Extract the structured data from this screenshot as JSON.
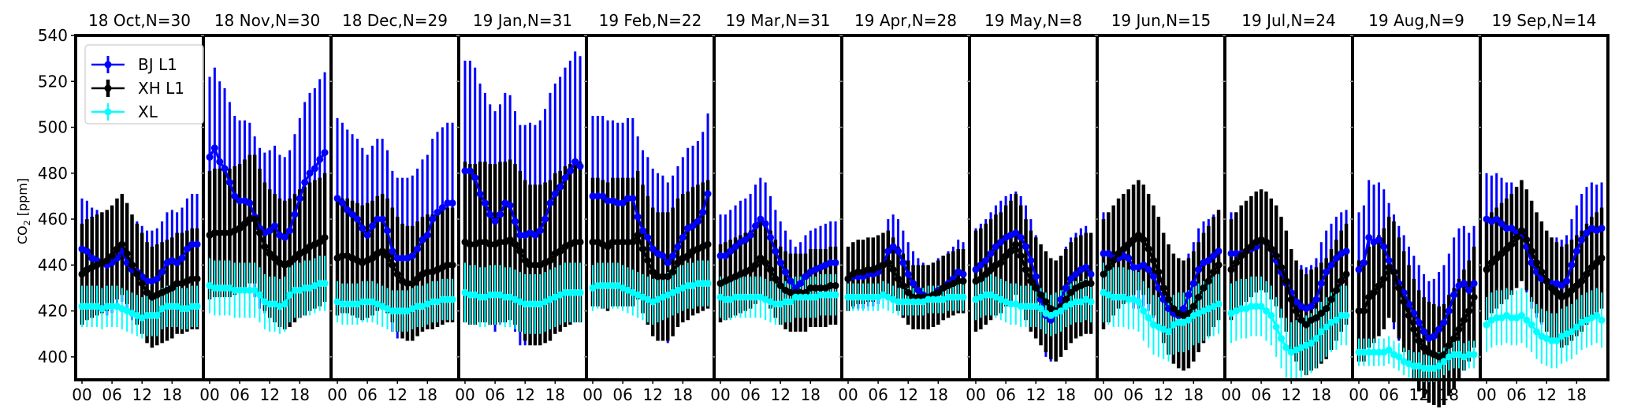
{
  "chart_data": {
    "type": "line",
    "subtype": "errorbar-panels",
    "ylabel": "CO2 [ppm]",
    "ylabel_main": "CO",
    "ylabel_sub": "2",
    "ylabel_unit": " [ppm]",
    "ylim": [
      390,
      540
    ],
    "yticks": [
      400,
      420,
      440,
      460,
      480,
      500,
      520,
      540
    ],
    "xlim": [
      -1.26,
      24.25
    ],
    "xticks": [
      0,
      6,
      12,
      18
    ],
    "xtick_labels": [
      "00",
      "06",
      "12",
      "18"
    ],
    "grid": false,
    "legend": {
      "placement": "top-left",
      "entries": [
        "BJ L1",
        "XH L1",
        "XL"
      ]
    },
    "colors": {
      "BJ L1": "#0000ff",
      "XH L1": "#000000",
      "XL": "#00ffff"
    },
    "hours": [
      0,
      1,
      2,
      3,
      4,
      5,
      6,
      7,
      8,
      9,
      10,
      11,
      12,
      13,
      14,
      15,
      16,
      17,
      18,
      19,
      20,
      21,
      22,
      23
    ],
    "panels": [
      {
        "title": "18 Oct,N=30",
        "BJ": {
          "mean": [
            447,
            446,
            443,
            442,
            441,
            440,
            441,
            443,
            446,
            441,
            438,
            437,
            435,
            433,
            433,
            434,
            437,
            441,
            442,
            441,
            443,
            447,
            449,
            449
          ],
          "err": 22
        },
        "XH": {
          "mean": [
            436,
            438,
            439,
            440,
            441,
            442,
            444,
            447,
            449,
            445,
            440,
            436,
            432,
            428,
            426,
            427,
            428,
            429,
            430,
            432,
            432,
            433,
            434,
            434
          ],
          "err": 22
        },
        "XL": {
          "mean": [
            422,
            422,
            422,
            422,
            421,
            422,
            422,
            422,
            421,
            420,
            419,
            418,
            417,
            418,
            418,
            418,
            421,
            422,
            422,
            422,
            421,
            421,
            422,
            422
          ],
          "err": 9
        }
      },
      {
        "title": "18 Nov,N=30",
        "BJ": {
          "mean": [
            487,
            491,
            485,
            482,
            476,
            470,
            468,
            468,
            467,
            461,
            456,
            454,
            455,
            457,
            453,
            452,
            455,
            462,
            469,
            476,
            480,
            482,
            486,
            489
          ],
          "err": 35
        },
        "XH": {
          "mean": [
            453,
            454,
            454,
            454,
            454,
            455,
            456,
            458,
            460,
            460,
            454,
            448,
            445,
            443,
            441,
            440,
            441,
            443,
            445,
            446,
            448,
            449,
            450,
            452
          ],
          "err": 28
        },
        "XL": {
          "mean": [
            431,
            430,
            430,
            430,
            430,
            429,
            429,
            429,
            429,
            429,
            427,
            424,
            423,
            423,
            422,
            423,
            427,
            429,
            429,
            430,
            430,
            431,
            432,
            432
          ],
          "err": 12
        }
      },
      {
        "title": "18 Dec,N=29",
        "BJ": {
          "mean": [
            469,
            467,
            464,
            462,
            460,
            456,
            453,
            457,
            460,
            460,
            455,
            446,
            443,
            443,
            443,
            444,
            447,
            451,
            453,
            460,
            463,
            465,
            467,
            467
          ],
          "err": 35
        },
        "XH": {
          "mean": [
            443,
            444,
            444,
            443,
            442,
            441,
            442,
            443,
            445,
            446,
            444,
            440,
            436,
            433,
            432,
            432,
            434,
            436,
            437,
            437,
            438,
            439,
            440,
            440
          ],
          "err": 25
        },
        "XL": {
          "mean": [
            424,
            423,
            423,
            423,
            423,
            424,
            424,
            424,
            423,
            422,
            421,
            420,
            420,
            420,
            420,
            421,
            422,
            422,
            423,
            424,
            424,
            425,
            425,
            425
          ],
          "err": 9
        }
      },
      {
        "title": "19 Jan,N=31",
        "BJ": {
          "mean": [
            481,
            481,
            478,
            471,
            467,
            462,
            459,
            462,
            467,
            466,
            459,
            453,
            453,
            454,
            453,
            455,
            460,
            467,
            471,
            474,
            478,
            481,
            485,
            483
          ],
          "err": 48
        },
        "XH": {
          "mean": [
            450,
            449,
            449,
            450,
            450,
            449,
            449,
            450,
            450,
            451,
            449,
            446,
            442,
            440,
            440,
            440,
            441,
            442,
            445,
            446,
            448,
            449,
            450,
            450
          ],
          "err": 35
        },
        "XL": {
          "mean": [
            428,
            427,
            427,
            426,
            426,
            427,
            427,
            427,
            426,
            426,
            425,
            424,
            423,
            423,
            423,
            423,
            424,
            425,
            426,
            427,
            428,
            428,
            428,
            428
          ],
          "err": 13
        }
      },
      {
        "title": "19 Feb,N=22",
        "BJ": {
          "mean": [
            470,
            470,
            470,
            468,
            468,
            467,
            467,
            469,
            469,
            461,
            455,
            452,
            447,
            445,
            444,
            441,
            444,
            448,
            452,
            456,
            457,
            459,
            463,
            471
          ],
          "err": 35
        },
        "XH": {
          "mean": [
            450,
            450,
            449,
            448,
            450,
            450,
            450,
            450,
            450,
            453,
            447,
            442,
            437,
            435,
            435,
            435,
            437,
            441,
            443,
            444,
            446,
            447,
            448,
            449
          ],
          "err": 28
        },
        "XL": {
          "mean": [
            430,
            431,
            431,
            431,
            431,
            431,
            430,
            429,
            428,
            427,
            426,
            425,
            424,
            425,
            426,
            427,
            428,
            429,
            430,
            431,
            431,
            432,
            432,
            432
          ],
          "err": 10
        }
      },
      {
        "title": "19 Mar,N=31",
        "BJ": {
          "mean": [
            444,
            444,
            446,
            448,
            450,
            451,
            453,
            457,
            460,
            458,
            452,
            446,
            441,
            437,
            433,
            430,
            432,
            435,
            437,
            438,
            439,
            440,
            441,
            441
          ],
          "err": 18
        },
        "XH": {
          "mean": [
            432,
            433,
            434,
            435,
            436,
            437,
            438,
            440,
            443,
            441,
            438,
            434,
            431,
            429,
            428,
            428,
            428,
            428,
            430,
            430,
            430,
            430,
            431,
            431
          ],
          "err": 17
        },
        "XL": {
          "mean": [
            426,
            425,
            425,
            426,
            426,
            426,
            426,
            426,
            426,
            425,
            424,
            423,
            423,
            424,
            424,
            426,
            426,
            426,
            426,
            426,
            427,
            427,
            427,
            427
          ],
          "err": 9
        }
      },
      {
        "title": "19 Apr,N=28",
        "BJ": {
          "mean": [
            434,
            435,
            435,
            435,
            436,
            436,
            437,
            440,
            446,
            448,
            446,
            441,
            436,
            432,
            429,
            427,
            426,
            427,
            429,
            430,
            432,
            434,
            437,
            436
          ],
          "err": 14
        },
        "XH": {
          "mean": [
            434,
            436,
            437,
            437,
            438,
            438,
            439,
            440,
            441,
            438,
            434,
            431,
            428,
            426,
            426,
            426,
            426,
            427,
            428,
            430,
            431,
            432,
            433,
            433
          ],
          "err": 14
        },
        "XL": {
          "mean": [
            426,
            426,
            426,
            426,
            426,
            426,
            426,
            427,
            426,
            425,
            424,
            424,
            424,
            424,
            424,
            424,
            425,
            425,
            425,
            425,
            426,
            426,
            426,
            426
          ],
          "err": 6
        }
      },
      {
        "title": "19 May,N=8",
        "BJ": {
          "mean": [
            438,
            440,
            442,
            445,
            448,
            450,
            452,
            453,
            454,
            452,
            448,
            442,
            435,
            425,
            418,
            416,
            419,
            425,
            430,
            434,
            436,
            438,
            439,
            436
          ],
          "err": 18
        },
        "XH": {
          "mean": [
            433,
            434,
            436,
            438,
            440,
            441,
            444,
            446,
            449,
            444,
            438,
            433,
            430,
            427,
            424,
            421,
            420,
            422,
            425,
            428,
            430,
            431,
            432,
            432
          ],
          "err": 22
        },
        "XL": {
          "mean": [
            425,
            426,
            427,
            427,
            426,
            425,
            424,
            423,
            423,
            422,
            422,
            422,
            422,
            421,
            419,
            418,
            419,
            420,
            422,
            423,
            424,
            424,
            425,
            424
          ],
          "err": 9
        }
      },
      {
        "title": "19 Jun,N=15",
        "BJ": {
          "mean": [
            445,
            445,
            443,
            443,
            444,
            443,
            439,
            439,
            440,
            438,
            435,
            430,
            425,
            421,
            419,
            418,
            421,
            427,
            432,
            438,
            441,
            442,
            444,
            446
          ],
          "err": 18
        },
        "XH": {
          "mean": [
            436,
            439,
            442,
            445,
            447,
            449,
            451,
            453,
            451,
            447,
            442,
            437,
            430,
            425,
            421,
            419,
            418,
            419,
            422,
            426,
            430,
            433,
            437,
            440
          ],
          "err": 24
        },
        "XL": {
          "mean": [
            428,
            427,
            426,
            426,
            426,
            425,
            425,
            424,
            420,
            417,
            414,
            413,
            412,
            411,
            414,
            415,
            415,
            416,
            418,
            419,
            420,
            421,
            422,
            423
          ],
          "err": 13
        }
      },
      {
        "title": "19 Jul,N=24",
        "BJ": {
          "mean": [
            445,
            445,
            445,
            446,
            447,
            448,
            451,
            450,
            447,
            442,
            437,
            432,
            428,
            424,
            422,
            421,
            422,
            425,
            432,
            437,
            440,
            443,
            445,
            446
          ],
          "err": 18
        },
        "XH": {
          "mean": [
            438,
            441,
            444,
            446,
            448,
            450,
            451,
            450,
            447,
            444,
            439,
            433,
            425,
            420,
            416,
            414,
            416,
            417,
            419,
            421,
            425,
            429,
            433,
            436
          ],
          "err": 22
        },
        "XL": {
          "mean": [
            419,
            420,
            421,
            421,
            422,
            422,
            422,
            420,
            418,
            413,
            408,
            404,
            402,
            403,
            404,
            405,
            406,
            408,
            411,
            413,
            415,
            416,
            418,
            418
          ],
          "err": 13
        }
      },
      {
        "title": "19 Aug,N=9",
        "BJ": {
          "mean": [
            438,
            441,
            452,
            450,
            451,
            448,
            442,
            437,
            432,
            428,
            423,
            419,
            415,
            411,
            408,
            409,
            412,
            415,
            420,
            427,
            431,
            432,
            429,
            432
          ],
          "err": 25
        },
        "XH": {
          "mean": [
            420,
            420,
            426,
            428,
            431,
            434,
            439,
            437,
            430,
            424,
            418,
            412,
            407,
            404,
            402,
            401,
            400,
            401,
            405,
            408,
            412,
            416,
            420,
            426
          ],
          "err": 22
        },
        "XL": {
          "mean": [
            402,
            402,
            402,
            402,
            402,
            402,
            403,
            401,
            400,
            398,
            397,
            396,
            396,
            395,
            395,
            395,
            396,
            398,
            400,
            401,
            401,
            400,
            401,
            401
          ],
          "err": 6
        }
      },
      {
        "title": "19 Sep,N=14",
        "BJ": {
          "mean": [
            460,
            459,
            460,
            458,
            456,
            456,
            454,
            454,
            448,
            441,
            437,
            434,
            433,
            432,
            432,
            431,
            433,
            440,
            446,
            451,
            454,
            456,
            455,
            456
          ],
          "err": 20
        },
        "XH": {
          "mean": [
            438,
            441,
            443,
            445,
            447,
            449,
            452,
            455,
            451,
            446,
            441,
            437,
            433,
            430,
            428,
            426,
            427,
            429,
            431,
            433,
            436,
            439,
            441,
            443
          ],
          "err": 22
        },
        "XL": {
          "mean": [
            414,
            416,
            417,
            417,
            418,
            417,
            417,
            418,
            416,
            414,
            411,
            409,
            408,
            407,
            407,
            409,
            410,
            411,
            413,
            415,
            416,
            417,
            418,
            416
          ],
          "err": 12
        }
      }
    ]
  }
}
